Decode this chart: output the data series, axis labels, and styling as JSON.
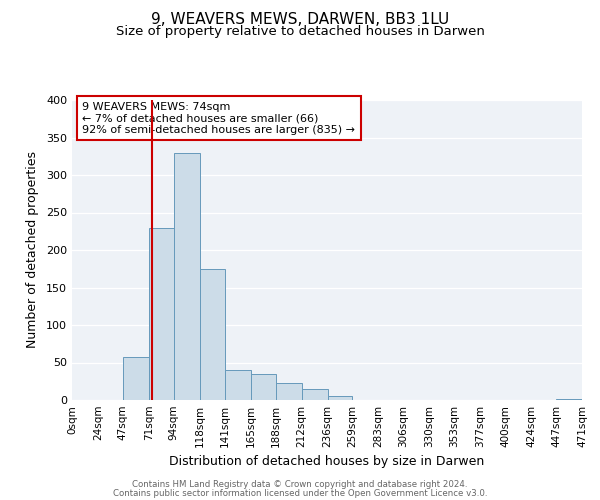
{
  "title": "9, WEAVERS MEWS, DARWEN, BB3 1LU",
  "subtitle": "Size of property relative to detached houses in Darwen",
  "xlabel": "Distribution of detached houses by size in Darwen",
  "ylabel": "Number of detached properties",
  "bin_edges": [
    0,
    24,
    47,
    71,
    94,
    118,
    141,
    165,
    188,
    212,
    236,
    259,
    283,
    306,
    330,
    353,
    377,
    400,
    424,
    447,
    471
  ],
  "bin_counts": [
    0,
    0,
    57,
    230,
    330,
    175,
    40,
    35,
    23,
    15,
    5,
    0,
    0,
    0,
    0,
    0,
    0,
    0,
    0,
    1
  ],
  "tick_labels": [
    "0sqm",
    "24sqm",
    "47sqm",
    "71sqm",
    "94sqm",
    "118sqm",
    "141sqm",
    "165sqm",
    "188sqm",
    "212sqm",
    "236sqm",
    "259sqm",
    "283sqm",
    "306sqm",
    "330sqm",
    "353sqm",
    "377sqm",
    "400sqm",
    "424sqm",
    "447sqm",
    "471sqm"
  ],
  "bar_color": "#ccdce8",
  "bar_edge_color": "#6699bb",
  "vline_x": 74,
  "vline_color": "#cc0000",
  "annotation_line1": "9 WEAVERS MEWS: 74sqm",
  "annotation_line2": "← 7% of detached houses are smaller (66)",
  "annotation_line3": "92% of semi-detached houses are larger (835) →",
  "annotation_box_color": "#cc0000",
  "ylim": [
    0,
    400
  ],
  "yticks": [
    0,
    50,
    100,
    150,
    200,
    250,
    300,
    350,
    400
  ],
  "background_color": "#eef2f7",
  "footer_line1": "Contains HM Land Registry data © Crown copyright and database right 2024.",
  "footer_line2": "Contains public sector information licensed under the Open Government Licence v3.0.",
  "title_fontsize": 11,
  "subtitle_fontsize": 9.5,
  "annotation_fontsize": 8,
  "axis_label_fontsize": 9,
  "tick_fontsize": 7.5,
  "ytick_fontsize": 8
}
